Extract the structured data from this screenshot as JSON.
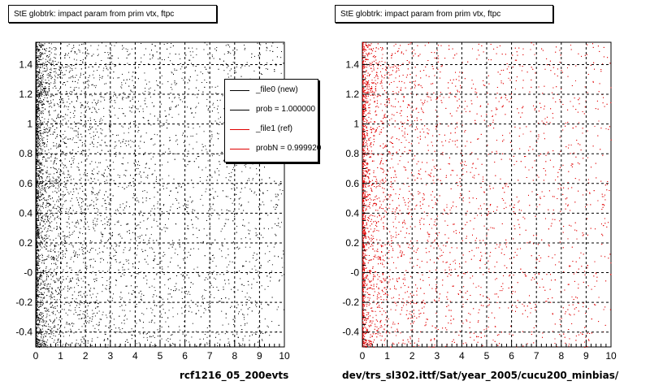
{
  "titles": {
    "left": "StE globtrk: impact param from prim vtx, ftpc",
    "right": "StE globtrk: impact param from prim vtx, ftpc"
  },
  "footers": {
    "left": "rcf1216_05_200evts",
    "right": "dev/trs_sl302.ittf/Sat/year_2005/cucu200_minbias/"
  },
  "stamp": "",
  "legend": {
    "entries": [
      {
        "label": "_file0 (new)",
        "color": "#000000"
      },
      {
        "label": "prob = 1.000000",
        "color": "#000000"
      },
      {
        "label": "_file1 (ref)",
        "color": "#e00000"
      },
      {
        "label": "probN = 0.999920",
        "color": "#e00000"
      }
    ]
  },
  "chart_data": [
    {
      "type": "scatter",
      "title": "StE globtrk: impact param from prim vtx, ftpc",
      "xlim": [
        0,
        10
      ],
      "ylim": [
        -0.5,
        1.55
      ],
      "x_ticks": [
        0,
        1,
        2,
        3,
        4,
        5,
        6,
        7,
        8,
        9,
        10
      ],
      "y_tick_labels": [
        "-0.4",
        "-0.2",
        "-0",
        "0.2",
        "0.4",
        "0.6",
        "0.8",
        "1",
        "1.2",
        "1.4"
      ],
      "y_tick_values": [
        -0.4,
        -0.2,
        0,
        0.2,
        0.4,
        0.6,
        0.8,
        1.0,
        1.2,
        1.4
      ],
      "grid": true,
      "marker_color": "#000000",
      "series": [
        {
          "name": "_file0 (new)"
        }
      ]
    },
    {
      "type": "scatter",
      "title": "StE globtrk: impact param from prim vtx, ftpc",
      "xlim": [
        0,
        10
      ],
      "ylim": [
        -0.5,
        1.55
      ],
      "x_ticks": [
        0,
        1,
        2,
        3,
        4,
        5,
        6,
        7,
        8,
        9,
        10
      ],
      "y_tick_labels": [
        "-0.4",
        "-0.2",
        "-0",
        "0.2",
        "0.4",
        "0.6",
        "0.8",
        "1",
        "1.2",
        "1.4"
      ],
      "y_tick_values": [
        -0.4,
        -0.2,
        0,
        0.2,
        0.4,
        0.6,
        0.8,
        1.0,
        1.2,
        1.4
      ],
      "grid": true,
      "marker_color": "#e00000",
      "series": [
        {
          "name": "_file1 (ref)"
        }
      ]
    }
  ]
}
